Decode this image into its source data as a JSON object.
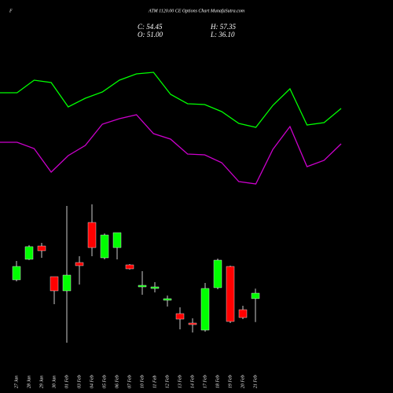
{
  "chart_data": [
    {
      "type": "candlestick",
      "ticker": "F",
      "title": "ATM 1120.00 CE Options  Chart MunafaSutra.com",
      "summary": [
        "C: 54.45",
        "H: 57.35",
        "O: 51.00",
        "L: 36.10"
      ],
      "categories": [
        "27 Jan",
        "28 Jan",
        "29 Jan",
        "30 Jan",
        "01 Feb",
        "03 Feb",
        "04 Feb",
        "05 Feb",
        "06 Feb",
        "07 Feb",
        "10 Feb",
        "11 Feb",
        "12 Feb",
        "13 Feb",
        "14 Feb",
        "17 Feb",
        "18 Feb",
        "19 Feb",
        "20 Feb",
        "21 Feb"
      ],
      "open": [
        62.95,
        76.0,
        84.45,
        64.95,
        55.95,
        73.95,
        99.45,
        76.95,
        83.45,
        72.45,
        58.45,
        57.45,
        49.95,
        41.45,
        35.45,
        30.95,
        57.95,
        71.45,
        43.95,
        51.0
      ],
      "high": [
        74.95,
        85.0,
        86.45,
        64.95,
        109.95,
        77.95,
        110.95,
        92.45,
        92.95,
        72.95,
        68.45,
        61.45,
        52.95,
        45.45,
        38.45,
        60.95,
        76.45,
        71.95,
        46.45,
        57.35
      ],
      "low": [
        61.95,
        75.5,
        76.95,
        47.45,
        22.95,
        59.95,
        77.95,
        75.95,
        75.95,
        69.45,
        53.45,
        54.95,
        45.95,
        31.45,
        29.45,
        29.95,
        56.95,
        35.45,
        37.95,
        36.1
      ],
      "close": [
        71.45,
        84.0,
        81.45,
        55.95,
        65.95,
        71.95,
        83.45,
        91.45,
        92.95,
        69.95,
        59.45,
        58.45,
        50.95,
        37.95,
        34.45,
        57.45,
        75.45,
        36.45,
        38.95,
        54.45
      ],
      "up_color": "#00ff00",
      "down_color": "#ff0000",
      "ylim": [
        20.95,
        115.95
      ]
    },
    {
      "type": "line",
      "series": [
        {
          "color": "#00ff00",
          "values": [
            132,
            132,
            148,
            145,
            114,
            125,
            133,
            148,
            156,
            158,
            130,
            118,
            117,
            108,
            93,
            88,
            116,
            137,
            91,
            94,
            112
          ]
        },
        {
          "color": "#cc00cc",
          "values": [
            69,
            69,
            61,
            31,
            52,
            65,
            92,
            99,
            104,
            80,
            73,
            54,
            53,
            43,
            19,
            16,
            60,
            89,
            38,
            46,
            67
          ]
        }
      ],
      "ylim": [
        0,
        250
      ]
    }
  ]
}
